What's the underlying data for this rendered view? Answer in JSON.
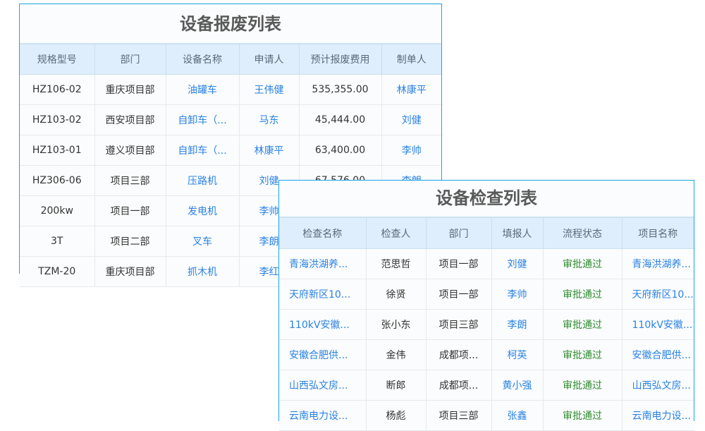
{
  "scrap": {
    "title": "设备报废列表",
    "headers": [
      "规格型号",
      "部门",
      "设备名称",
      "申请人",
      "预计报废费用",
      "制单人"
    ],
    "rows": [
      [
        "HZ106-02",
        "重庆项目部",
        "油罐车",
        "王伟健",
        "535,355.00",
        "林康平"
      ],
      [
        "HZ103-02",
        "西安项目部",
        "自卸车（...",
        "马东",
        "45,444.00",
        "刘健"
      ],
      [
        "HZ103-01",
        "遵义项目部",
        "自卸车（...",
        "林康平",
        "63,400.00",
        "李帅"
      ],
      [
        "HZ306-06",
        "项目三部",
        "压路机",
        "刘健",
        "67,576.00",
        "李朗"
      ],
      [
        "200kw",
        "项目一部",
        "发电机",
        "李帅",
        "",
        ""
      ],
      [
        "3T",
        "项目二部",
        "叉车",
        "李朗",
        "",
        ""
      ],
      [
        "TZM-20",
        "重庆项目部",
        "抓木机",
        "李红",
        "",
        ""
      ]
    ]
  },
  "inspect": {
    "title": "设备检查列表",
    "headers": [
      "检查名称",
      "检查人",
      "部门",
      "填报人",
      "流程状态",
      "项目名称"
    ],
    "rows": [
      [
        "青海洪湖养...",
        "范思哲",
        "项目一部",
        "刘健",
        "审批通过",
        "青海洪湖养..."
      ],
      [
        "天府新区10...",
        "徐贤",
        "项目一部",
        "李帅",
        "审批通过",
        "天府新区10..."
      ],
      [
        "110kV安徽...",
        "张小东",
        "项目三部",
        "李朗",
        "审批通过",
        "110kV安徽..."
      ],
      [
        "安徽合肥供...",
        "金伟",
        "成都项...",
        "柯英",
        "审批通过",
        "安徽合肥供..."
      ],
      [
        "山西弘文房...",
        "断郎",
        "成都项...",
        "黄小强",
        "审批通过",
        "山西弘文房..."
      ],
      [
        "云南电力设...",
        "杨彪",
        "项目三部",
        "张鑫",
        "审批通过",
        "云南电力设..."
      ]
    ]
  },
  "colors": {
    "border": "#1aa3e8",
    "header_bg": "#dfeefc",
    "link": "#2a82e4",
    "status_ok": "#2e8b2e"
  }
}
